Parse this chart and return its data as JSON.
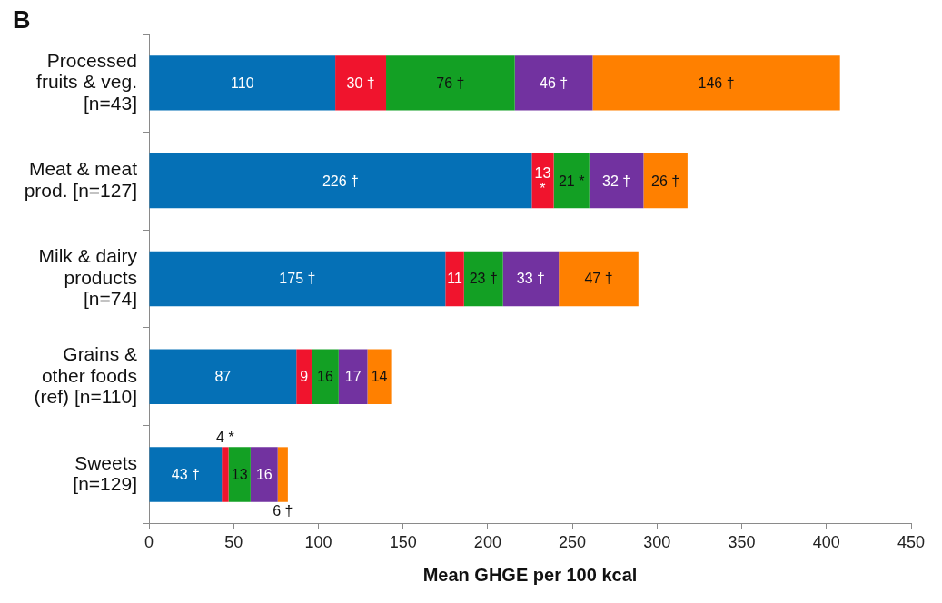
{
  "chart_data": {
    "type": "bar",
    "orientation": "horizontal",
    "stacked": true,
    "title": "B",
    "xlabel": "Mean GHGE per 100 kcal",
    "categories": [
      "Processed fruits & veg. [n=43]",
      "Meat & meat prod. [n=127]",
      "Milk & dairy products [n=74]",
      "Grains & other foods (ref) [n=110]",
      "Sweets [n=129]"
    ],
    "series": [
      {
        "color": "#0570b6",
        "values": [
          110,
          226,
          175,
          87,
          43
        ],
        "value_labels": [
          "110",
          "226 †",
          "175 †",
          "87",
          "43 †"
        ]
      },
      {
        "color": "#f0142d",
        "values": [
          30,
          13,
          11,
          9,
          4
        ],
        "value_labels": [
          "30 †",
          "13 *",
          "11",
          "9",
          "4 *"
        ]
      },
      {
        "color": "#13a024",
        "values": [
          76,
          21,
          23,
          16,
          13
        ],
        "value_labels": [
          "76 †",
          "21 *",
          "23 †",
          "16",
          "13"
        ]
      },
      {
        "color": "#7232a0",
        "values": [
          46,
          32,
          33,
          17,
          16
        ],
        "value_labels": [
          "46 †",
          "32 †",
          "33 †",
          "17",
          "16"
        ]
      },
      {
        "color": "#ff8000",
        "values": [
          146,
          26,
          47,
          14,
          6
        ],
        "value_labels": [
          "146 †",
          "26 †",
          "47 †",
          "14",
          "6 †"
        ]
      }
    ],
    "xlim": [
      0,
      450
    ],
    "xticks": [
      0,
      50,
      100,
      150,
      200,
      250,
      300,
      350,
      400,
      450
    ]
  }
}
